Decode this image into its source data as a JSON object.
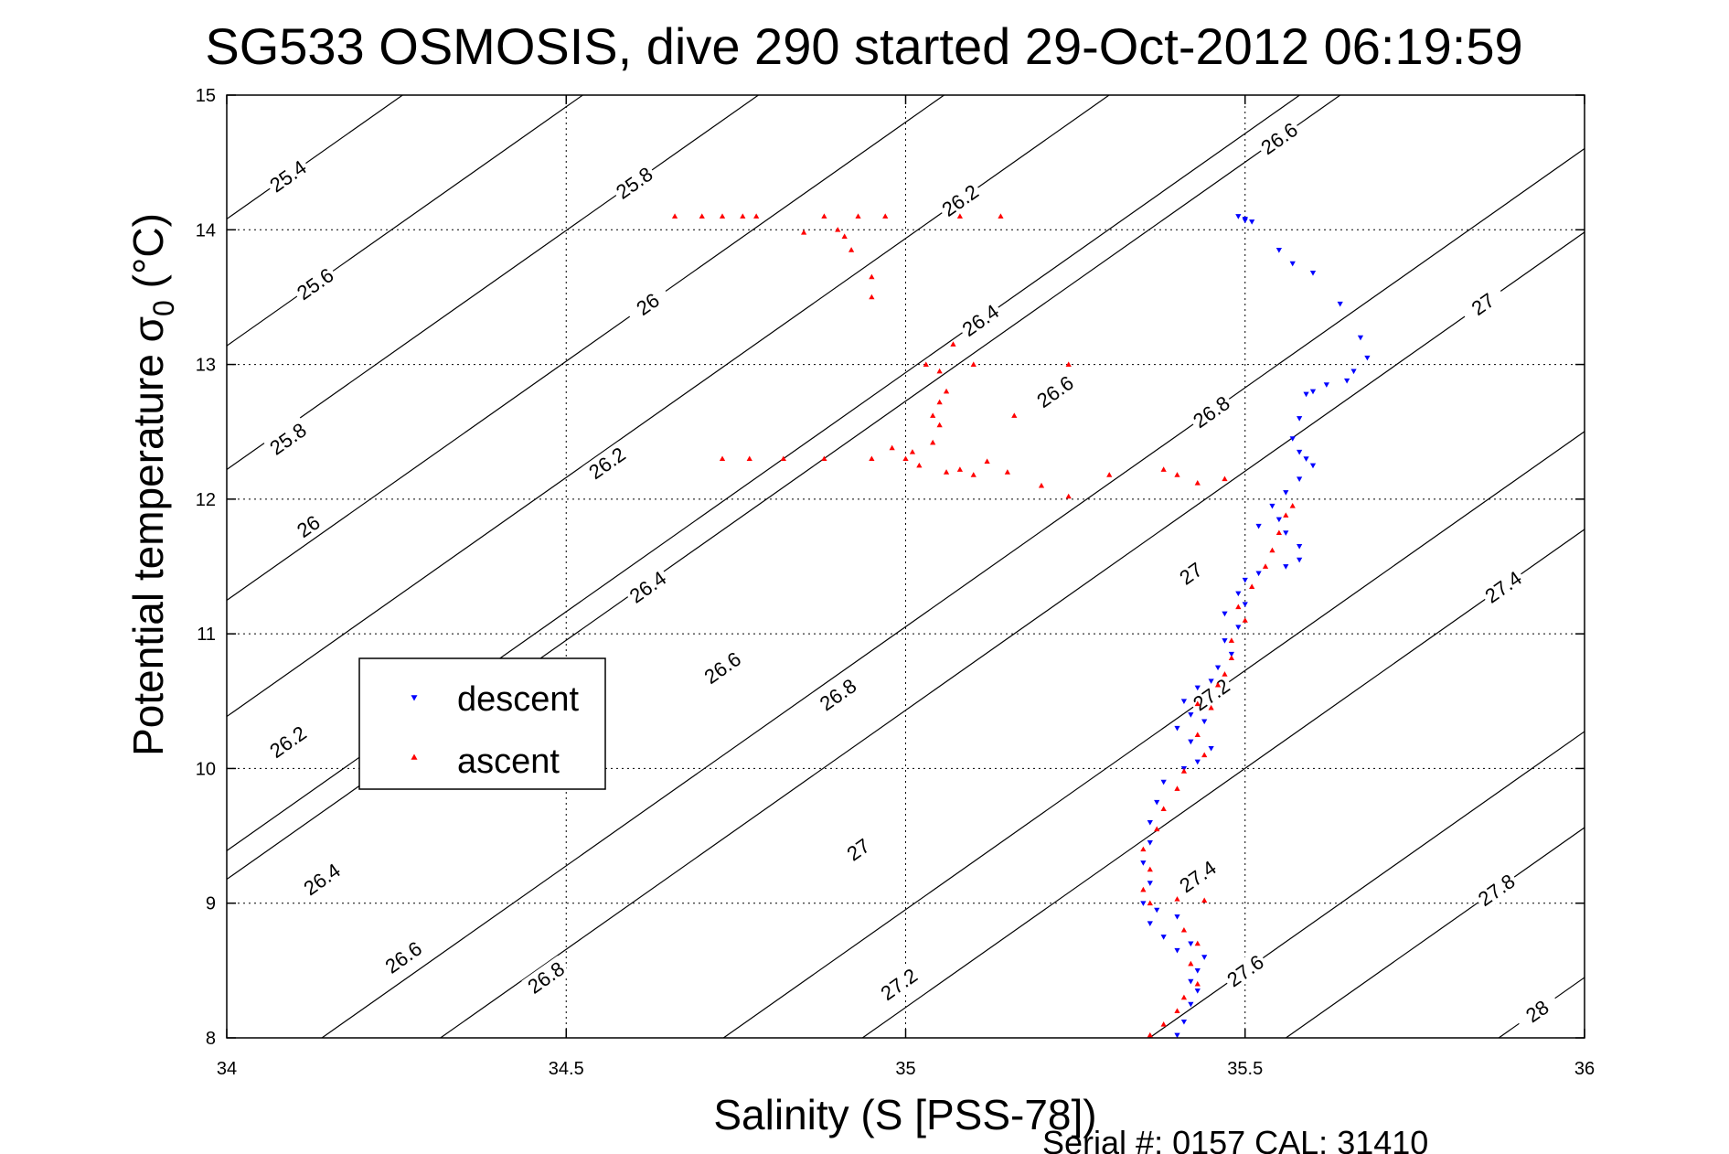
{
  "chart_data": {
    "type": "scatter",
    "title": "SG533 OSMOSIS, dive 290 started 29-Oct-2012 06:19:59",
    "xlabel": "Salinity (S [PSS-78])",
    "ylabel": "Potential temperature σ",
    "ylabel_sub": "0",
    "ylabel_unit": " (°C)",
    "xlim": [
      34,
      36
    ],
    "ylim": [
      8,
      15
    ],
    "xticks": [
      34,
      34.5,
      35,
      35.5,
      36
    ],
    "xtick_labels": [
      "34",
      "34.5",
      "35",
      "35.5",
      "36"
    ],
    "yticks": [
      8,
      9,
      10,
      11,
      12,
      13,
      14,
      15
    ],
    "ytick_labels": [
      "8",
      "9",
      "10",
      "11",
      "12",
      "13",
      "14",
      "15"
    ],
    "grid": true,
    "legend_position": "left-middle",
    "footer": "Serial #: 0157  CAL: 31410",
    "contours": [
      {
        "label": "25.4",
        "labels_at": [
          [
            34.09,
            14.4
          ]
        ]
      },
      {
        "label": "25.6",
        "labels_at": [
          [
            34.13,
            13.6
          ]
        ]
      },
      {
        "label": "25.8",
        "labels_at": [
          [
            34.6,
            14.35
          ],
          [
            34.09,
            12.45
          ]
        ]
      },
      {
        "label": "26",
        "labels_at": [
          [
            34.62,
            13.45
          ],
          [
            34.12,
            11.8
          ]
        ]
      },
      {
        "label": "26.2",
        "labels_at": [
          [
            35.08,
            14.22
          ],
          [
            34.56,
            12.27
          ],
          [
            34.09,
            10.2
          ]
        ]
      },
      {
        "label": "26.4",
        "labels_at": [
          [
            35.11,
            13.33
          ],
          [
            34.62,
            11.35
          ],
          [
            34.14,
            9.18
          ]
        ]
      },
      {
        "label": "26.6",
        "labels_at": [
          [
            35.55,
            14.68
          ],
          [
            35.22,
            12.8
          ],
          [
            34.73,
            10.75
          ],
          [
            34.26,
            8.6
          ]
        ]
      },
      {
        "label": "26.8",
        "labels_at": [
          [
            35.45,
            12.65
          ],
          [
            34.9,
            10.55
          ],
          [
            34.47,
            8.45
          ]
        ]
      },
      {
        "label": "27",
        "labels_at": [
          [
            35.85,
            13.45
          ],
          [
            35.42,
            11.45
          ],
          [
            34.93,
            9.4
          ]
        ]
      },
      {
        "label": "27.2",
        "labels_at": [
          [
            35.45,
            10.55
          ],
          [
            34.99,
            8.4
          ]
        ]
      },
      {
        "label": "27.4",
        "labels_at": [
          [
            35.88,
            11.35
          ],
          [
            35.43,
            9.2
          ]
        ]
      },
      {
        "label": "27.6",
        "labels_at": [
          [
            35.5,
            8.5
          ]
        ]
      },
      {
        "label": "27.8",
        "labels_at": [
          [
            35.87,
            9.1
          ]
        ]
      },
      {
        "label": "28",
        "labels_at": [
          [
            35.93,
            8.2
          ]
        ]
      }
    ],
    "series": [
      {
        "name": "descent",
        "color": "#0000ff",
        "marker": "triangle-down",
        "points": [
          [
            35.49,
            14.1
          ],
          [
            35.5,
            14.08
          ],
          [
            35.5,
            14.07
          ],
          [
            35.51,
            14.06
          ],
          [
            35.55,
            13.85
          ],
          [
            35.57,
            13.75
          ],
          [
            35.6,
            13.68
          ],
          [
            35.64,
            13.45
          ],
          [
            35.67,
            13.2
          ],
          [
            35.68,
            13.05
          ],
          [
            35.66,
            12.95
          ],
          [
            35.65,
            12.88
          ],
          [
            35.62,
            12.85
          ],
          [
            35.6,
            12.8
          ],
          [
            35.59,
            12.78
          ],
          [
            35.58,
            12.6
          ],
          [
            35.57,
            12.45
          ],
          [
            35.58,
            12.35
          ],
          [
            35.59,
            12.3
          ],
          [
            35.6,
            12.25
          ],
          [
            35.58,
            12.15
          ],
          [
            35.56,
            12.05
          ],
          [
            35.54,
            11.95
          ],
          [
            35.55,
            11.85
          ],
          [
            35.52,
            11.8
          ],
          [
            35.56,
            11.75
          ],
          [
            35.58,
            11.65
          ],
          [
            35.58,
            11.55
          ],
          [
            35.56,
            11.5
          ],
          [
            35.52,
            11.45
          ],
          [
            35.5,
            11.4
          ],
          [
            35.49,
            11.3
          ],
          [
            35.5,
            11.22
          ],
          [
            35.47,
            11.15
          ],
          [
            35.49,
            11.05
          ],
          [
            35.47,
            10.95
          ],
          [
            35.48,
            10.85
          ],
          [
            35.46,
            10.75
          ],
          [
            35.45,
            10.65
          ],
          [
            35.43,
            10.6
          ],
          [
            35.41,
            10.5
          ],
          [
            35.42,
            10.4
          ],
          [
            35.44,
            10.35
          ],
          [
            35.4,
            10.3
          ],
          [
            35.42,
            10.2
          ],
          [
            35.45,
            10.15
          ],
          [
            35.43,
            10.05
          ],
          [
            35.41,
            10.0
          ],
          [
            35.38,
            9.9
          ],
          [
            35.37,
            9.75
          ],
          [
            35.36,
            9.6
          ],
          [
            35.36,
            9.45
          ],
          [
            35.35,
            9.3
          ],
          [
            35.36,
            9.15
          ],
          [
            35.35,
            9.0
          ],
          [
            35.37,
            8.95
          ],
          [
            35.4,
            8.9
          ],
          [
            35.36,
            8.85
          ],
          [
            35.38,
            8.75
          ],
          [
            35.4,
            8.65
          ],
          [
            35.42,
            8.7
          ],
          [
            35.44,
            8.6
          ],
          [
            35.43,
            8.5
          ],
          [
            35.42,
            8.42
          ],
          [
            35.43,
            8.35
          ],
          [
            35.42,
            8.25
          ],
          [
            35.41,
            8.12
          ],
          [
            35.4,
            8.02
          ]
        ]
      },
      {
        "name": "ascent",
        "color": "#ff0000",
        "marker": "triangle-up",
        "points": [
          [
            35.36,
            8.02
          ],
          [
            35.38,
            8.1
          ],
          [
            35.4,
            8.2
          ],
          [
            35.41,
            8.3
          ],
          [
            35.43,
            8.4
          ],
          [
            35.42,
            8.55
          ],
          [
            35.43,
            8.7
          ],
          [
            35.41,
            8.8
          ],
          [
            35.44,
            9.02
          ],
          [
            35.4,
            9.03
          ],
          [
            35.36,
            9.0
          ],
          [
            35.35,
            9.1
          ],
          [
            35.36,
            9.25
          ],
          [
            35.35,
            9.4
          ],
          [
            35.37,
            9.55
          ],
          [
            35.38,
            9.7
          ],
          [
            35.4,
            9.85
          ],
          [
            35.41,
            9.98
          ],
          [
            35.44,
            10.1
          ],
          [
            35.43,
            10.25
          ],
          [
            35.45,
            10.45
          ],
          [
            35.43,
            10.48
          ],
          [
            35.46,
            10.62
          ],
          [
            35.47,
            10.7
          ],
          [
            35.48,
            10.82
          ],
          [
            35.48,
            10.95
          ],
          [
            35.5,
            11.1
          ],
          [
            35.49,
            11.2
          ],
          [
            35.51,
            11.35
          ],
          [
            35.53,
            11.5
          ],
          [
            35.54,
            11.62
          ],
          [
            35.55,
            11.75
          ],
          [
            35.56,
            11.88
          ],
          [
            35.57,
            11.95
          ],
          [
            35.47,
            12.15
          ],
          [
            35.43,
            12.12
          ],
          [
            35.4,
            12.18
          ],
          [
            35.38,
            12.22
          ],
          [
            35.3,
            12.18
          ],
          [
            35.24,
            12.02
          ],
          [
            35.2,
            12.1
          ],
          [
            35.15,
            12.2
          ],
          [
            35.12,
            12.28
          ],
          [
            35.1,
            12.18
          ],
          [
            35.08,
            12.22
          ],
          [
            35.06,
            12.2
          ],
          [
            35.02,
            12.25
          ],
          [
            35.01,
            12.35
          ],
          [
            35.0,
            12.3
          ],
          [
            34.98,
            12.38
          ],
          [
            34.95,
            12.3
          ],
          [
            34.88,
            12.3
          ],
          [
            34.82,
            12.3
          ],
          [
            34.77,
            12.3
          ],
          [
            34.73,
            12.3
          ],
          [
            35.04,
            12.42
          ],
          [
            35.05,
            12.55
          ],
          [
            35.04,
            12.62
          ],
          [
            35.05,
            12.72
          ],
          [
            35.06,
            12.8
          ],
          [
            35.05,
            12.95
          ],
          [
            35.03,
            13.0
          ],
          [
            35.1,
            13.0
          ],
          [
            35.07,
            13.15
          ],
          [
            35.24,
            13.0
          ],
          [
            35.16,
            12.62
          ],
          [
            34.95,
            13.65
          ],
          [
            34.95,
            13.5
          ],
          [
            34.92,
            13.85
          ],
          [
            34.91,
            13.95
          ],
          [
            34.9,
            14.0
          ],
          [
            34.85,
            13.98
          ],
          [
            34.93,
            14.1
          ],
          [
            34.88,
            14.1
          ],
          [
            34.97,
            14.1
          ],
          [
            34.66,
            14.1
          ],
          [
            34.7,
            14.1
          ],
          [
            34.73,
            14.1
          ],
          [
            34.76,
            14.1
          ],
          [
            34.78,
            14.1
          ],
          [
            35.08,
            14.1
          ],
          [
            35.14,
            14.1
          ]
        ]
      }
    ]
  }
}
